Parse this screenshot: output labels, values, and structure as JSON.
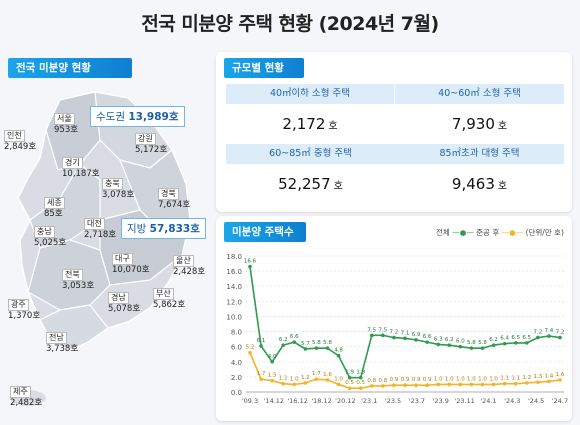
{
  "title": "전국 미분양 주택 현황  (2024년 7월)",
  "map": {
    "tag": "전국 미분양 현황",
    "capital_callout": {
      "label": "수도권",
      "value": "13,989호"
    },
    "region_callout": {
      "label": "지방",
      "value": "57,833호"
    },
    "regions": [
      {
        "name": "서울",
        "value": "953호"
      },
      {
        "name": "인천",
        "value": "2,849호"
      },
      {
        "name": "강원",
        "value": "5,172호"
      },
      {
        "name": "경기",
        "value": "10,187호"
      },
      {
        "name": "충북",
        "value": "3,078호"
      },
      {
        "name": "경북",
        "value": "7,674호"
      },
      {
        "name": "세종",
        "value": "85호"
      },
      {
        "name": "충남",
        "value": "5,025호"
      },
      {
        "name": "대전",
        "value": "2,718호"
      },
      {
        "name": "대구",
        "value": "10,070호"
      },
      {
        "name": "울산",
        "value": "2,428호"
      },
      {
        "name": "전북",
        "value": "3,053호"
      },
      {
        "name": "경남",
        "value": "5,078호"
      },
      {
        "name": "부산",
        "value": "5,862호"
      },
      {
        "name": "광주",
        "value": "1,370호"
      },
      {
        "name": "전남",
        "value": "3,738호"
      },
      {
        "name": "제주",
        "value": "2,482호"
      }
    ]
  },
  "size": {
    "tag": "규모별 현황",
    "cells": [
      {
        "label": "40㎡이하 소형 주택",
        "value": "2,172",
        "unit": "호"
      },
      {
        "label": "40~60㎡ 소형 주택",
        "value": "7,930",
        "unit": "호"
      },
      {
        "label": "60~85㎡ 중형 주택",
        "value": "52,257",
        "unit": "호"
      },
      {
        "label": "85㎡초과 대형 주택",
        "value": "9,463",
        "unit": "호"
      }
    ]
  },
  "trend": {
    "tag": "미분양 주택수",
    "legend": {
      "total": "전체",
      "completed": "준공 후",
      "unit": "(단위/만 호)"
    }
  },
  "colors": {
    "total": "#2e9b4e",
    "completed": "#f2b428",
    "accent": "#1aa6e8"
  },
  "chart_data": {
    "type": "line",
    "y_ticks": [
      "0.0",
      "2.0",
      "4.0",
      "6.0",
      "8.0",
      "10.0",
      "12.0",
      "14.0",
      "16.0",
      "18.0"
    ],
    "ylim": [
      0,
      18
    ],
    "x_tick_labels": [
      "'09.3",
      "'14.12",
      "'16.12",
      "'18.12",
      "'20.12",
      "'23.1",
      "'23.5",
      "'23.7",
      "'23.9",
      "'23.11",
      "'24.1",
      "'24.3",
      "'24.5",
      "'24.7"
    ],
    "series": [
      {
        "name": "전체",
        "values": [
          16.6,
          6.1,
          4.0,
          6.2,
          6.6,
          5.7,
          5.8,
          5.8,
          4.8,
          1.9,
          1.9,
          7.5,
          7.5,
          7.2,
          7.1,
          6.9,
          6.6,
          6.3,
          6.2,
          6.0,
          5.8,
          5.8,
          6.2,
          6.4,
          6.5,
          6.5,
          7.2,
          7.4,
          7.2
        ],
        "labels": [
          "16.6",
          "6.1",
          "4.0",
          "6.2",
          "6.6",
          "5.7",
          "5.8",
          "5.8",
          "4.8",
          "1.9",
          "1.9",
          "7.5",
          "7.5",
          "7.2",
          "7.1",
          "6.9",
          "6.6",
          "6.3",
          "6.2",
          "6.0",
          "5.8",
          "5.8",
          "6.2",
          "6.4",
          "6.5",
          "6.5",
          "7.2",
          "7.4",
          "7.2"
        ]
      },
      {
        "name": "준공 후",
        "values": [
          5.2,
          1.7,
          1.5,
          1.1,
          1.0,
          1.2,
          1.7,
          1.6,
          1.0,
          0.5,
          0.5,
          0.8,
          0.8,
          0.9,
          0.9,
          0.9,
          0.9,
          1.0,
          1.0,
          1.0,
          1.0,
          1.0,
          1.0,
          1.1,
          1.1,
          1.2,
          1.3,
          1.4,
          1.6
        ],
        "labels": [
          "5.2",
          "1.7",
          "1.5",
          "1.1",
          "1.0",
          "1.2",
          "1.7",
          "1.6",
          "1.0",
          "0.5",
          "0.5",
          "0.8",
          "0.8",
          "0.9",
          "0.9",
          "0.9",
          "0.9",
          "1.0",
          "1.0",
          "1.0",
          "1.0",
          "1.0",
          "1.0",
          "1.1",
          "1.1",
          "1.2",
          "1.3",
          "1.4",
          "1.6"
        ]
      }
    ]
  }
}
